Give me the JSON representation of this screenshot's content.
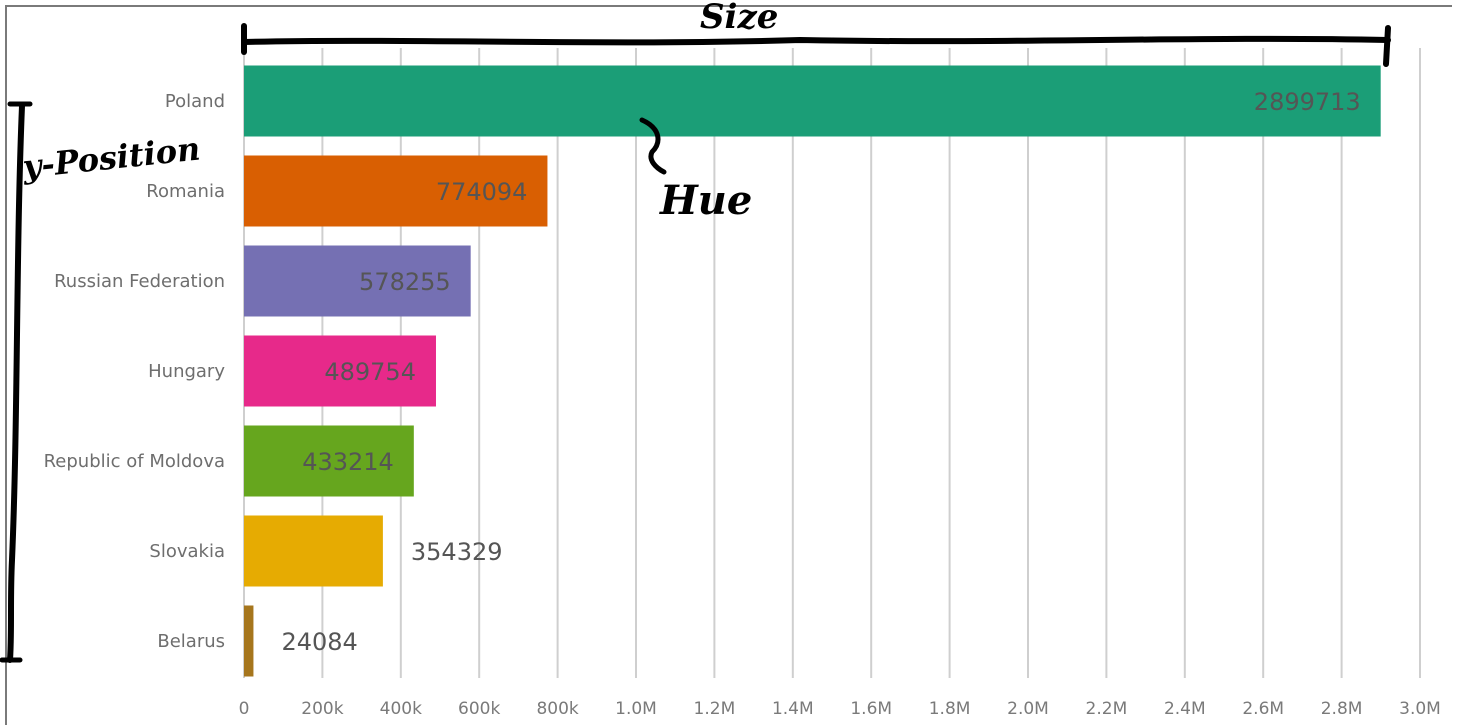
{
  "chart_data": {
    "type": "bar",
    "orientation": "horizontal",
    "categories": [
      "Poland",
      "Romania",
      "Russian Federation",
      "Hungary",
      "Republic of Moldova",
      "Slovakia",
      "Belarus"
    ],
    "values": [
      2899713,
      774094,
      578255,
      489754,
      433214,
      354329,
      24084
    ],
    "colors": [
      "#1b9e77",
      "#d95f02",
      "#7570b3",
      "#e7298a",
      "#66a61e",
      "#e6ab02",
      "#a6761d"
    ],
    "xlim": [
      0,
      3000000
    ],
    "x_ticks": [
      0,
      200000,
      400000,
      600000,
      800000,
      1000000,
      1200000,
      1400000,
      1600000,
      1800000,
      2000000,
      2200000,
      2400000,
      2600000,
      2800000,
      3000000
    ],
    "x_tick_labels": [
      "0",
      "200k",
      "400k",
      "600k",
      "800k",
      "1.0M",
      "1.2M",
      "1.4M",
      "1.6M",
      "1.8M",
      "2.0M",
      "2.2M",
      "2.4M",
      "2.6M",
      "2.8M",
      "3.0M"
    ],
    "grid": "vertical",
    "value_labels": true
  },
  "annotations": {
    "size": "Size",
    "hue": "Hue",
    "y_position": "y-Position"
  }
}
